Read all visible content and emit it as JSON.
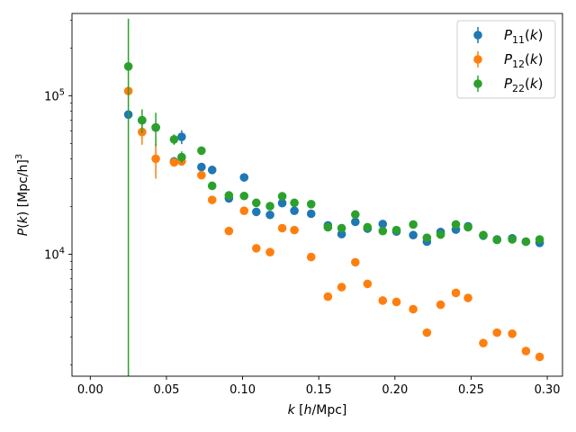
{
  "chart_data": {
    "type": "scatter",
    "x_axis": {
      "label": "k [h/Mpc]",
      "label_parts": {
        "var": "k",
        "unit": "h",
        "unit_rest": "/Mpc"
      },
      "lim": [
        -0.012,
        0.31
      ],
      "ticks": [
        0.0,
        0.05,
        0.1,
        0.15,
        0.2,
        0.25,
        0.3
      ],
      "tick_labels": [
        "0.00",
        "0.05",
        "0.10",
        "0.15",
        "0.20",
        "0.25",
        "0.30"
      ]
    },
    "y_axis": {
      "label": "P(k) [Mpc/h]^3",
      "scale": "log",
      "lim": [
        1700,
        330000
      ],
      "ticks": [
        10000,
        100000
      ],
      "tick_labels": [
        "10^4",
        "10^5"
      ]
    },
    "legend": {
      "position": "upper right",
      "entries": [
        {
          "base": "P",
          "sub": "11",
          "arg": "(k)",
          "color": "#1f77b4"
        },
        {
          "base": "P",
          "sub": "12",
          "arg": "(k)",
          "color": "#ff7f0e"
        },
        {
          "base": "P",
          "sub": "22",
          "arg": "(k)",
          "color": "#2ca02c"
        }
      ]
    },
    "series": [
      {
        "name": "P11(k)",
        "color": "#1f77b4",
        "points": [
          {
            "x": 0.025,
            "y": 76000,
            "err": 0
          },
          {
            "x": 0.034,
            "y": 70000,
            "err": 0
          },
          {
            "x": 0.043,
            "y": 63000,
            "err": 0
          },
          {
            "x": 0.055,
            "y": 38500,
            "err": 0
          },
          {
            "x": 0.06,
            "y": 55000,
            "err": 5500
          },
          {
            "x": 0.073,
            "y": 35500,
            "err": 0
          },
          {
            "x": 0.08,
            "y": 34000,
            "err": 0
          },
          {
            "x": 0.091,
            "y": 22500,
            "err": 0
          },
          {
            "x": 0.101,
            "y": 30500,
            "err": 0
          },
          {
            "x": 0.109,
            "y": 18500,
            "err": 0
          },
          {
            "x": 0.118,
            "y": 17700,
            "err": 0
          },
          {
            "x": 0.126,
            "y": 21000,
            "err": 0
          },
          {
            "x": 0.134,
            "y": 18800,
            "err": 0
          },
          {
            "x": 0.145,
            "y": 18000,
            "err": 0
          },
          {
            "x": 0.156,
            "y": 15200,
            "err": 0
          },
          {
            "x": 0.165,
            "y": 13400,
            "err": 0
          },
          {
            "x": 0.174,
            "y": 16000,
            "err": 0
          },
          {
            "x": 0.182,
            "y": 14500,
            "err": 0
          },
          {
            "x": 0.192,
            "y": 15500,
            "err": 0
          },
          {
            "x": 0.201,
            "y": 13900,
            "err": 0
          },
          {
            "x": 0.212,
            "y": 13200,
            "err": 0
          },
          {
            "x": 0.221,
            "y": 12000,
            "err": 0
          },
          {
            "x": 0.23,
            "y": 13800,
            "err": 0
          },
          {
            "x": 0.24,
            "y": 14300,
            "err": 0
          },
          {
            "x": 0.248,
            "y": 15000,
            "err": 0
          },
          {
            "x": 0.258,
            "y": 13100,
            "err": 0
          },
          {
            "x": 0.267,
            "y": 12400,
            "err": 0
          },
          {
            "x": 0.277,
            "y": 12600,
            "err": 0
          },
          {
            "x": 0.286,
            "y": 12000,
            "err": 0
          },
          {
            "x": 0.295,
            "y": 11800,
            "err": 0
          }
        ]
      },
      {
        "name": "P12(k)",
        "color": "#ff7f0e",
        "points": [
          {
            "x": 0.025,
            "y": 107000,
            "err": 0
          },
          {
            "x": 0.034,
            "y": 59000,
            "err": 10000
          },
          {
            "x": 0.043,
            "y": 40000,
            "err": 10000
          },
          {
            "x": 0.055,
            "y": 38000,
            "err": 0
          },
          {
            "x": 0.06,
            "y": 38500,
            "err": 0
          },
          {
            "x": 0.073,
            "y": 31500,
            "err": 0
          },
          {
            "x": 0.08,
            "y": 22000,
            "err": 0
          },
          {
            "x": 0.091,
            "y": 14000,
            "err": 0
          },
          {
            "x": 0.101,
            "y": 18800,
            "err": 0
          },
          {
            "x": 0.109,
            "y": 10900,
            "err": 0
          },
          {
            "x": 0.118,
            "y": 10300,
            "err": 0
          },
          {
            "x": 0.126,
            "y": 14600,
            "err": 0
          },
          {
            "x": 0.134,
            "y": 14200,
            "err": 0
          },
          {
            "x": 0.145,
            "y": 9600,
            "err": 0
          },
          {
            "x": 0.156,
            "y": 5400,
            "err": 0
          },
          {
            "x": 0.165,
            "y": 6200,
            "err": 0
          },
          {
            "x": 0.174,
            "y": 8900,
            "err": 0
          },
          {
            "x": 0.182,
            "y": 6500,
            "err": 0
          },
          {
            "x": 0.192,
            "y": 5100,
            "err": 0
          },
          {
            "x": 0.201,
            "y": 5000,
            "err": 0
          },
          {
            "x": 0.212,
            "y": 4500,
            "err": 0
          },
          {
            "x": 0.221,
            "y": 3200,
            "err": 0
          },
          {
            "x": 0.23,
            "y": 4800,
            "err": 0
          },
          {
            "x": 0.24,
            "y": 5700,
            "err": 0
          },
          {
            "x": 0.248,
            "y": 5300,
            "err": 0
          },
          {
            "x": 0.258,
            "y": 2750,
            "err": 0
          },
          {
            "x": 0.267,
            "y": 3200,
            "err": 0
          },
          {
            "x": 0.277,
            "y": 3150,
            "err": 0
          },
          {
            "x": 0.286,
            "y": 2450,
            "err": 0
          },
          {
            "x": 0.295,
            "y": 2250,
            "err": 0
          }
        ]
      },
      {
        "name": "P22(k)",
        "color": "#2ca02c",
        "points": [
          {
            "x": 0.025,
            "y": 153000,
            "err": 153000
          },
          {
            "x": 0.034,
            "y": 70000,
            "err": 12000
          },
          {
            "x": 0.043,
            "y": 63000,
            "err": 15000
          },
          {
            "x": 0.055,
            "y": 53000,
            "err": 4000
          },
          {
            "x": 0.06,
            "y": 41000,
            "err": 3500
          },
          {
            "x": 0.073,
            "y": 45000,
            "err": 0
          },
          {
            "x": 0.08,
            "y": 27000,
            "err": 0
          },
          {
            "x": 0.091,
            "y": 23500,
            "err": 0
          },
          {
            "x": 0.101,
            "y": 23300,
            "err": 0
          },
          {
            "x": 0.109,
            "y": 21100,
            "err": 0
          },
          {
            "x": 0.118,
            "y": 20100,
            "err": 0
          },
          {
            "x": 0.126,
            "y": 23200,
            "err": 0
          },
          {
            "x": 0.134,
            "y": 21100,
            "err": 0
          },
          {
            "x": 0.145,
            "y": 20700,
            "err": 0
          },
          {
            "x": 0.156,
            "y": 14800,
            "err": 0
          },
          {
            "x": 0.165,
            "y": 14600,
            "err": 0
          },
          {
            "x": 0.174,
            "y": 17800,
            "err": 0
          },
          {
            "x": 0.182,
            "y": 14800,
            "err": 0
          },
          {
            "x": 0.192,
            "y": 14000,
            "err": 0
          },
          {
            "x": 0.201,
            "y": 14200,
            "err": 0
          },
          {
            "x": 0.212,
            "y": 15400,
            "err": 0
          },
          {
            "x": 0.221,
            "y": 12700,
            "err": 0
          },
          {
            "x": 0.23,
            "y": 13300,
            "err": 0
          },
          {
            "x": 0.24,
            "y": 15400,
            "err": 0
          },
          {
            "x": 0.248,
            "y": 14800,
            "err": 0
          },
          {
            "x": 0.258,
            "y": 13200,
            "err": 0
          },
          {
            "x": 0.267,
            "y": 12300,
            "err": 0
          },
          {
            "x": 0.277,
            "y": 12400,
            "err": 0
          },
          {
            "x": 0.286,
            "y": 12000,
            "err": 0
          },
          {
            "x": 0.295,
            "y": 12400,
            "err": 0
          }
        ]
      }
    ]
  }
}
